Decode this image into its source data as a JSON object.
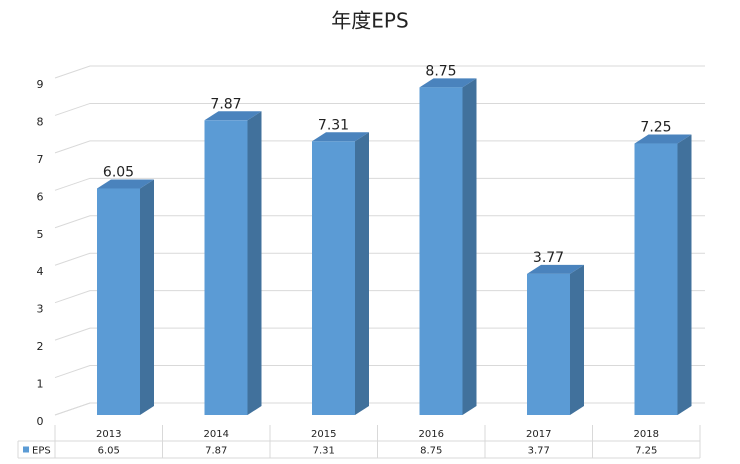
{
  "chart_data": {
    "type": "bar3d",
    "title": "年度EPS",
    "categories": [
      "2013",
      "2014",
      "2015",
      "2016",
      "2017",
      "2018"
    ],
    "series": [
      {
        "name": "EPS",
        "color": "#5b9bd5",
        "values": [
          6.05,
          7.87,
          7.31,
          8.75,
          3.77,
          7.25
        ]
      }
    ],
    "ylim": [
      0,
      9
    ],
    "yticks": [
      0,
      1,
      2,
      3,
      4,
      5,
      6,
      7,
      8,
      9
    ],
    "grid": true,
    "data_labels": true,
    "data_table": true
  }
}
